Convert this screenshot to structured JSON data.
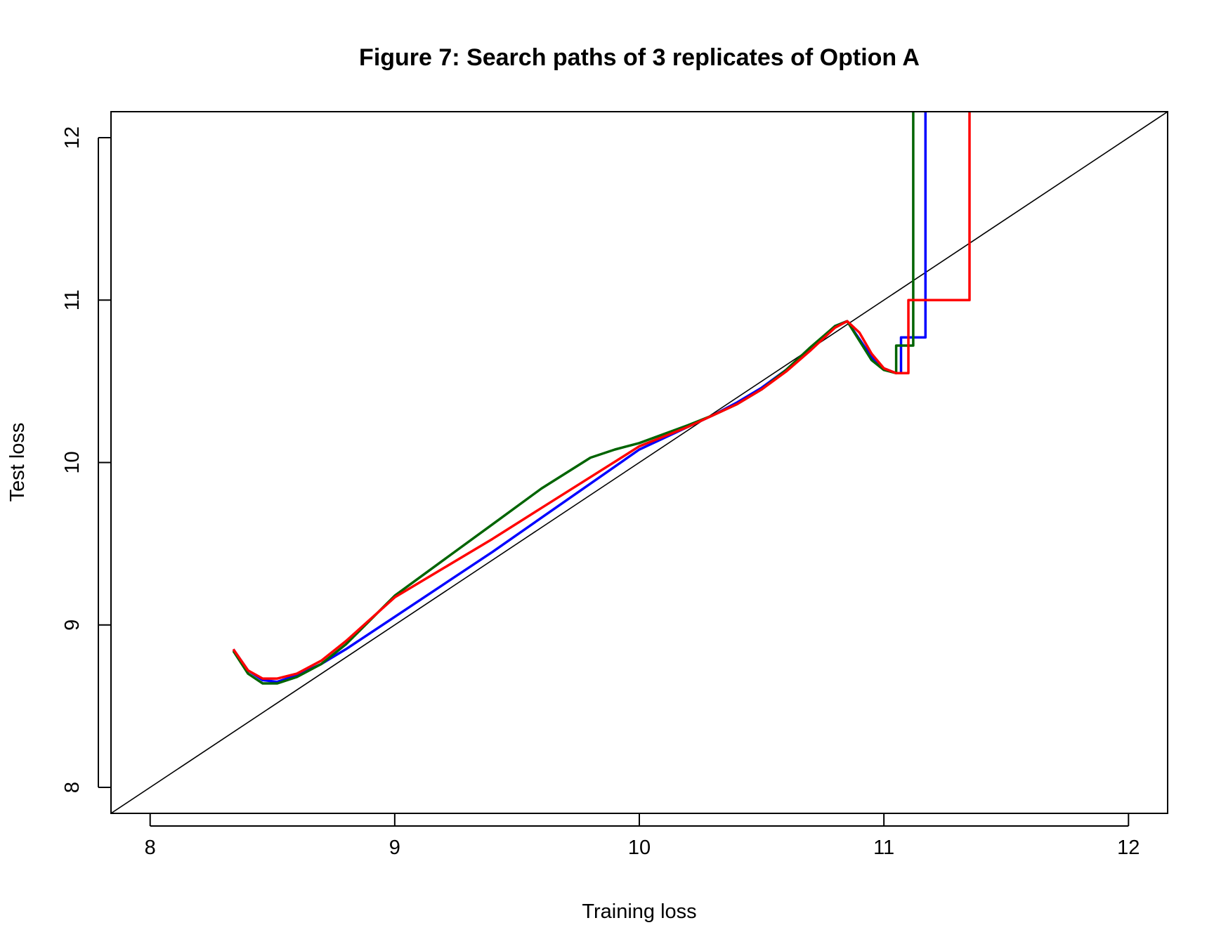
{
  "chart_data": {
    "type": "line",
    "title": "Figure 7: Search paths of 3 replicates of Option A",
    "xlabel": "Training loss",
    "ylabel": "Test loss",
    "xlim": [
      7.84,
      12.16
    ],
    "ylim": [
      7.84,
      12.16
    ],
    "xticks": [
      "8",
      "9",
      "10",
      "11",
      "12"
    ],
    "yticks": [
      "8",
      "9",
      "10",
      "11",
      "12"
    ],
    "grid": false,
    "legend": "none",
    "reference_line": {
      "x": [
        7.84,
        12.16
      ],
      "y": [
        7.84,
        12.16
      ],
      "color": "#000000"
    },
    "series": [
      {
        "color": "#0000ff",
        "x": [
          8.34,
          8.4,
          8.46,
          8.52,
          8.6,
          8.7,
          8.8,
          9.0,
          9.2,
          9.4,
          9.6,
          9.8,
          10.0,
          10.2,
          10.3,
          10.4,
          10.5,
          10.6,
          10.7,
          10.8,
          10.85,
          10.9,
          10.95,
          11.0,
          11.05,
          11.07,
          11.07,
          11.17,
          11.17
        ],
        "y": [
          8.85,
          8.72,
          8.66,
          8.65,
          8.69,
          8.76,
          8.85,
          9.05,
          9.25,
          9.45,
          9.66,
          9.87,
          10.08,
          10.22,
          10.29,
          10.37,
          10.46,
          10.57,
          10.7,
          10.84,
          10.87,
          10.76,
          10.65,
          10.58,
          10.55,
          10.55,
          10.77,
          10.77,
          12.2
        ]
      },
      {
        "color": "#006400",
        "x": [
          8.34,
          8.4,
          8.46,
          8.52,
          8.6,
          8.7,
          8.8,
          9.0,
          9.2,
          9.4,
          9.6,
          9.8,
          9.9,
          10.0,
          10.2,
          10.3,
          10.4,
          10.5,
          10.6,
          10.7,
          10.8,
          10.85,
          10.9,
          10.95,
          11.0,
          11.05,
          11.05,
          11.12,
          11.12
        ],
        "y": [
          8.84,
          8.7,
          8.64,
          8.64,
          8.68,
          8.76,
          8.88,
          9.18,
          9.4,
          9.62,
          9.84,
          10.03,
          10.08,
          10.12,
          10.23,
          10.29,
          10.36,
          10.45,
          10.57,
          10.71,
          10.84,
          10.87,
          10.75,
          10.63,
          10.57,
          10.55,
          10.72,
          10.72,
          12.2
        ]
      },
      {
        "color": "#ff0000",
        "x": [
          8.34,
          8.4,
          8.46,
          8.52,
          8.6,
          8.7,
          8.8,
          9.0,
          9.2,
          9.4,
          9.6,
          9.8,
          10.0,
          10.2,
          10.3,
          10.4,
          10.5,
          10.6,
          10.7,
          10.8,
          10.85,
          10.9,
          10.95,
          11.0,
          11.05,
          11.1,
          11.1,
          11.35,
          11.35
        ],
        "y": [
          8.85,
          8.72,
          8.67,
          8.67,
          8.7,
          8.78,
          8.9,
          9.17,
          9.35,
          9.53,
          9.72,
          9.91,
          10.1,
          10.22,
          10.29,
          10.36,
          10.45,
          10.56,
          10.69,
          10.83,
          10.87,
          10.8,
          10.67,
          10.58,
          10.55,
          10.55,
          11.0,
          11.0,
          12.2
        ]
      }
    ]
  }
}
